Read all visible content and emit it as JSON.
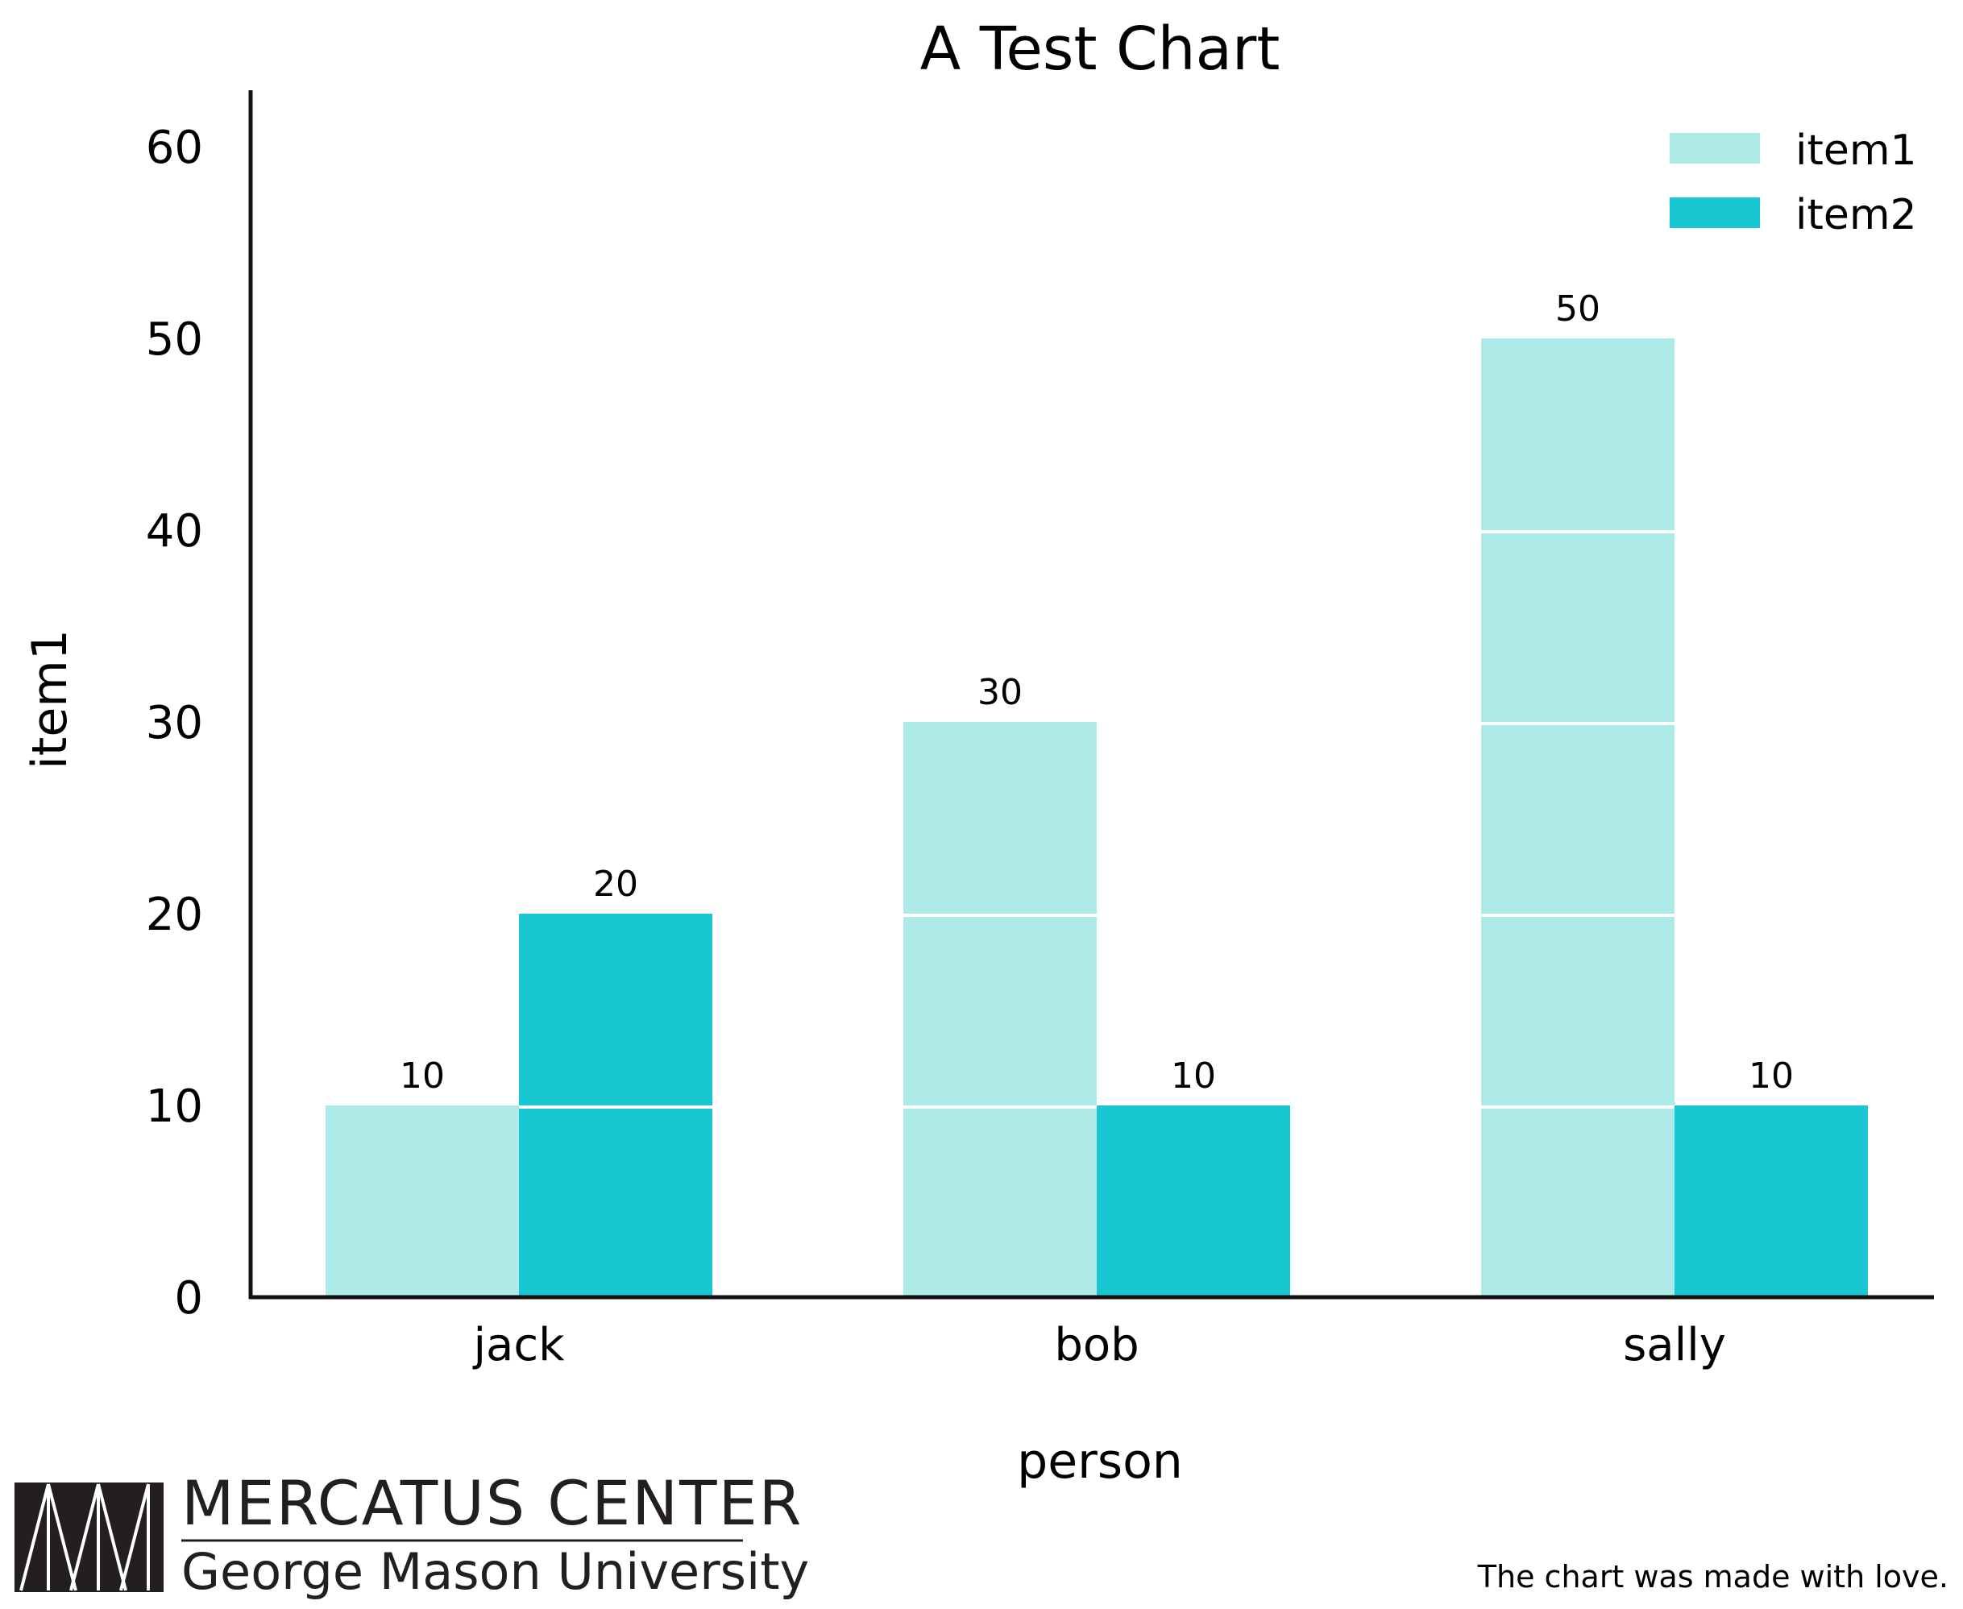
{
  "chart_data": {
    "type": "bar",
    "title": "A Test Chart",
    "xlabel": "person",
    "ylabel": "item1",
    "categories": [
      "jack",
      "bob",
      "sally"
    ],
    "series": [
      {
        "name": "item1",
        "values": [
          10,
          30,
          50
        ],
        "color": "#AEEAE7"
      },
      {
        "name": "item2",
        "values": [
          20,
          10,
          10
        ],
        "color": "#19C7D2"
      }
    ],
    "ylim": [
      0,
      63
    ],
    "yticks": [
      0,
      10,
      20,
      30,
      40,
      50,
      60
    ],
    "segment_step": 10,
    "grid": false,
    "legend_position": "top-right"
  },
  "footer": {
    "note": "The chart was made with love.",
    "logo_line1": "MERCATUS CENTER",
    "logo_line2": "George Mason University"
  },
  "colors": {
    "item1": "#AEEAE7",
    "item2": "#19C7D2",
    "axis": "#111111",
    "logo": "#231f20"
  }
}
